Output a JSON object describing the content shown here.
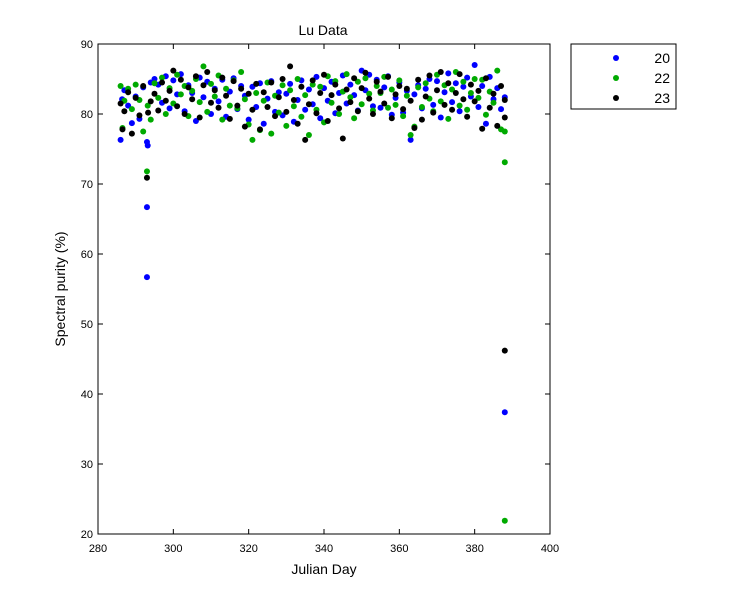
{
  "chart_data": {
    "type": "scatter",
    "title": "Lu Data",
    "xlabel": "Julian Day",
    "ylabel": "Spectral purity (%)",
    "xlim": [
      280,
      400
    ],
    "ylim": [
      20,
      90
    ],
    "xticks": [
      280,
      300,
      320,
      340,
      360,
      380,
      400
    ],
    "yticks": [
      20,
      30,
      40,
      50,
      60,
      70,
      80,
      90
    ],
    "grid": false,
    "legend": "outside top-right",
    "series": [
      {
        "name": "20",
        "color": "#0000ff",
        "points": [
          [
            286,
            76.3
          ],
          [
            286.4,
            82.1
          ],
          [
            287,
            83.4
          ],
          [
            288,
            81.2
          ],
          [
            289,
            78.7
          ],
          [
            290,
            82.5
          ],
          [
            291,
            79.3
          ],
          [
            292,
            83.8
          ],
          [
            293,
            66.7
          ],
          [
            293,
            56.7
          ],
          [
            293,
            76.0
          ],
          [
            293.2,
            75.5
          ],
          [
            294,
            84.5
          ],
          [
            295,
            85.0
          ],
          [
            296,
            84.2
          ],
          [
            297,
            81.6
          ],
          [
            298,
            85.4
          ],
          [
            299,
            80.8
          ],
          [
            300,
            84.8
          ],
          [
            301,
            82.8
          ],
          [
            302,
            85.7
          ],
          [
            303,
            80.4
          ],
          [
            304,
            84.1
          ],
          [
            305,
            83.0
          ],
          [
            306,
            79.0
          ],
          [
            307,
            85.2
          ],
          [
            308,
            82.4
          ],
          [
            309,
            84.6
          ],
          [
            310,
            80.0
          ],
          [
            311,
            83.6
          ],
          [
            312,
            81.8
          ],
          [
            313,
            84.9
          ],
          [
            314,
            79.6
          ],
          [
            315,
            83.2
          ],
          [
            316,
            85.1
          ],
          [
            317,
            80.7
          ],
          [
            318,
            84.0
          ],
          [
            319,
            82.6
          ],
          [
            320,
            79.2
          ],
          [
            321,
            83.9
          ],
          [
            322,
            81.0
          ],
          [
            323,
            84.4
          ],
          [
            324,
            78.6
          ],
          [
            325,
            82.2
          ],
          [
            326,
            84.7
          ],
          [
            327,
            80.3
          ],
          [
            328,
            83.1
          ],
          [
            329,
            79.8
          ],
          [
            330,
            82.9
          ],
          [
            331,
            84.3
          ],
          [
            332,
            78.9
          ],
          [
            333,
            82.0
          ],
          [
            334,
            84.8
          ],
          [
            335,
            80.6
          ],
          [
            336,
            83.5
          ],
          [
            337,
            81.4
          ],
          [
            338,
            85.3
          ],
          [
            339,
            79.4
          ],
          [
            340,
            83.7
          ],
          [
            341,
            81.9
          ],
          [
            342,
            84.6
          ],
          [
            343,
            80.1
          ],
          [
            344,
            83.0
          ],
          [
            345,
            85.5
          ],
          [
            346,
            81.5
          ],
          [
            347,
            84.2
          ],
          [
            348,
            82.7
          ],
          [
            349,
            80.5
          ],
          [
            350,
            86.2
          ],
          [
            351,
            83.4
          ],
          [
            352,
            85.6
          ],
          [
            353,
            81.1
          ],
          [
            354,
            84.9
          ],
          [
            355,
            80.9
          ],
          [
            356,
            83.8
          ],
          [
            357,
            85.4
          ],
          [
            358,
            79.9
          ],
          [
            359,
            82.3
          ],
          [
            360,
            84.5
          ],
          [
            361,
            80.2
          ],
          [
            362,
            83.3
          ],
          [
            363,
            76.3
          ],
          [
            364,
            82.8
          ],
          [
            365,
            84.1
          ],
          [
            366,
            80.8
          ],
          [
            367,
            83.6
          ],
          [
            368,
            85.0
          ],
          [
            369,
            81.3
          ],
          [
            370,
            84.7
          ],
          [
            371,
            79.5
          ],
          [
            372,
            83.1
          ],
          [
            373,
            85.8
          ],
          [
            374,
            81.7
          ],
          [
            375,
            84.4
          ],
          [
            376,
            80.4
          ],
          [
            377,
            83.9
          ],
          [
            378,
            85.2
          ],
          [
            379,
            82.5
          ],
          [
            380,
            87.0
          ],
          [
            381,
            81.0
          ],
          [
            382,
            84.0
          ],
          [
            383,
            78.6
          ],
          [
            384,
            85.3
          ],
          [
            385,
            82.1
          ],
          [
            386,
            83.7
          ],
          [
            387,
            80.7
          ],
          [
            388,
            37.4
          ],
          [
            388,
            82.4
          ]
        ]
      },
      {
        "name": "22",
        "color": "#00aa00",
        "points": [
          [
            286,
            84.0
          ],
          [
            286.5,
            78.0
          ],
          [
            287,
            81.9
          ],
          [
            288,
            83.6
          ],
          [
            289,
            80.7
          ],
          [
            290,
            84.2
          ],
          [
            291,
            82.0
          ],
          [
            292,
            77.5
          ],
          [
            293,
            71.8
          ],
          [
            293.2,
            81.2
          ],
          [
            294,
            79.2
          ],
          [
            295,
            84.4
          ],
          [
            296,
            82.3
          ],
          [
            297,
            85.2
          ],
          [
            298,
            80.0
          ],
          [
            299,
            83.7
          ],
          [
            300,
            81.5
          ],
          [
            301,
            85.6
          ],
          [
            302,
            82.8
          ],
          [
            303,
            84.0
          ],
          [
            304,
            79.7
          ],
          [
            305,
            83.3
          ],
          [
            306,
            85.0
          ],
          [
            307,
            81.7
          ],
          [
            308,
            86.8
          ],
          [
            309,
            80.3
          ],
          [
            310,
            84.3
          ],
          [
            311,
            82.5
          ],
          [
            312,
            85.5
          ],
          [
            313,
            79.2
          ],
          [
            314,
            83.6
          ],
          [
            315,
            81.2
          ],
          [
            316,
            84.8
          ],
          [
            317,
            80.8
          ],
          [
            318,
            86.0
          ],
          [
            319,
            82.1
          ],
          [
            320,
            78.5
          ],
          [
            321,
            76.3
          ],
          [
            322,
            83.0
          ],
          [
            323,
            77.7
          ],
          [
            324,
            81.9
          ],
          [
            325,
            84.5
          ],
          [
            326,
            77.2
          ],
          [
            327,
            82.6
          ],
          [
            328,
            80.2
          ],
          [
            329,
            84.1
          ],
          [
            330,
            78.3
          ],
          [
            331,
            83.4
          ],
          [
            332,
            81.1
          ],
          [
            333,
            85.0
          ],
          [
            334,
            79.6
          ],
          [
            335,
            82.7
          ],
          [
            336,
            77.0
          ],
          [
            337,
            84.2
          ],
          [
            338,
            80.6
          ],
          [
            339,
            83.9
          ],
          [
            340,
            78.8
          ],
          [
            341,
            85.4
          ],
          [
            342,
            81.6
          ],
          [
            343,
            84.7
          ],
          [
            344,
            80.0
          ],
          [
            345,
            83.2
          ],
          [
            346,
            85.7
          ],
          [
            347,
            82.4
          ],
          [
            348,
            79.4
          ],
          [
            349,
            84.6
          ],
          [
            350,
            81.4
          ],
          [
            351,
            85.1
          ],
          [
            352,
            82.9
          ],
          [
            353,
            80.5
          ],
          [
            354,
            84.0
          ],
          [
            355,
            83.0
          ],
          [
            356,
            85.3
          ],
          [
            357,
            80.9
          ],
          [
            358,
            83.5
          ],
          [
            359,
            81.3
          ],
          [
            360,
            84.8
          ],
          [
            361,
            79.7
          ],
          [
            362,
            82.6
          ],
          [
            363,
            77.0
          ],
          [
            364,
            78.2
          ],
          [
            365,
            83.8
          ],
          [
            366,
            81.0
          ],
          [
            367,
            84.4
          ],
          [
            368,
            82.2
          ],
          [
            369,
            80.4
          ],
          [
            370,
            85.6
          ],
          [
            371,
            81.8
          ],
          [
            372,
            84.1
          ],
          [
            373,
            79.3
          ],
          [
            374,
            83.5
          ],
          [
            375,
            86.0
          ],
          [
            376,
            81.2
          ],
          [
            377,
            84.6
          ],
          [
            378,
            80.6
          ],
          [
            379,
            83.0
          ],
          [
            380,
            85.0
          ],
          [
            381,
            82.3
          ],
          [
            382,
            84.9
          ],
          [
            383,
            79.9
          ],
          [
            384,
            83.2
          ],
          [
            385,
            81.6
          ],
          [
            386,
            86.2
          ],
          [
            387,
            77.8
          ],
          [
            388,
            73.1
          ],
          [
            388,
            21.9
          ],
          [
            388,
            77.5
          ]
        ]
      },
      {
        "name": "23",
        "color": "#000000",
        "points": [
          [
            286,
            81.5
          ],
          [
            286.5,
            77.8
          ],
          [
            287,
            80.4
          ],
          [
            288,
            83.1
          ],
          [
            289,
            77.2
          ],
          [
            290,
            82.3
          ],
          [
            291,
            79.8
          ],
          [
            292,
            84.0
          ],
          [
            293,
            70.9
          ],
          [
            293.3,
            80.2
          ],
          [
            294,
            81.8
          ],
          [
            295,
            82.9
          ],
          [
            296,
            80.5
          ],
          [
            297,
            84.5
          ],
          [
            298,
            81.9
          ],
          [
            299,
            83.3
          ],
          [
            300,
            86.2
          ],
          [
            301,
            81.1
          ],
          [
            302,
            84.9
          ],
          [
            303,
            80.0
          ],
          [
            304,
            83.8
          ],
          [
            305,
            82.1
          ],
          [
            306,
            85.4
          ],
          [
            307,
            79.5
          ],
          [
            308,
            84.1
          ],
          [
            309,
            86.0
          ],
          [
            310,
            81.6
          ],
          [
            311,
            83.4
          ],
          [
            312,
            80.9
          ],
          [
            313,
            85.2
          ],
          [
            314,
            82.6
          ],
          [
            315,
            79.3
          ],
          [
            316,
            84.7
          ],
          [
            317,
            81.2
          ],
          [
            318,
            83.6
          ],
          [
            319,
            78.2
          ],
          [
            320,
            82.9
          ],
          [
            321,
            80.6
          ],
          [
            322,
            84.3
          ],
          [
            323,
            77.8
          ],
          [
            324,
            83.1
          ],
          [
            325,
            81.0
          ],
          [
            326,
            84.5
          ],
          [
            327,
            79.7
          ],
          [
            328,
            82.4
          ],
          [
            329,
            85.0
          ],
          [
            330,
            80.3
          ],
          [
            331,
            86.8
          ],
          [
            332,
            82.0
          ],
          [
            333,
            78.6
          ],
          [
            334,
            83.9
          ],
          [
            335,
            76.3
          ],
          [
            336,
            81.4
          ],
          [
            337,
            84.8
          ],
          [
            338,
            80.1
          ],
          [
            339,
            83.0
          ],
          [
            340,
            85.6
          ],
          [
            341,
            79.0
          ],
          [
            342,
            82.7
          ],
          [
            343,
            84.2
          ],
          [
            344,
            80.8
          ],
          [
            345,
            76.5
          ],
          [
            346,
            83.5
          ],
          [
            347,
            81.7
          ],
          [
            348,
            85.1
          ],
          [
            349,
            80.4
          ],
          [
            350,
            83.7
          ],
          [
            351,
            85.9
          ],
          [
            352,
            82.2
          ],
          [
            353,
            80.0
          ],
          [
            354,
            84.6
          ],
          [
            355,
            83.2
          ],
          [
            356,
            81.5
          ],
          [
            357,
            85.3
          ],
          [
            358,
            79.4
          ],
          [
            359,
            82.8
          ],
          [
            360,
            84.0
          ],
          [
            361,
            80.7
          ],
          [
            362,
            83.6
          ],
          [
            363,
            81.9
          ],
          [
            364,
            78.0
          ],
          [
            365,
            84.9
          ],
          [
            366,
            79.2
          ],
          [
            367,
            82.5
          ],
          [
            368,
            85.5
          ],
          [
            369,
            80.2
          ],
          [
            370,
            83.4
          ],
          [
            371,
            86.0
          ],
          [
            372,
            81.3
          ],
          [
            373,
            84.4
          ],
          [
            374,
            80.6
          ],
          [
            375,
            83.0
          ],
          [
            376,
            85.7
          ],
          [
            377,
            82.1
          ],
          [
            378,
            79.6
          ],
          [
            379,
            84.2
          ],
          [
            380,
            81.8
          ],
          [
            381,
            83.3
          ],
          [
            382,
            77.9
          ],
          [
            383,
            85.1
          ],
          [
            384,
            80.9
          ],
          [
            385,
            82.9
          ],
          [
            386,
            78.3
          ],
          [
            387,
            84.0
          ],
          [
            388,
            46.2
          ],
          [
            388,
            82.0
          ],
          [
            388,
            79.5
          ]
        ]
      }
    ]
  }
}
